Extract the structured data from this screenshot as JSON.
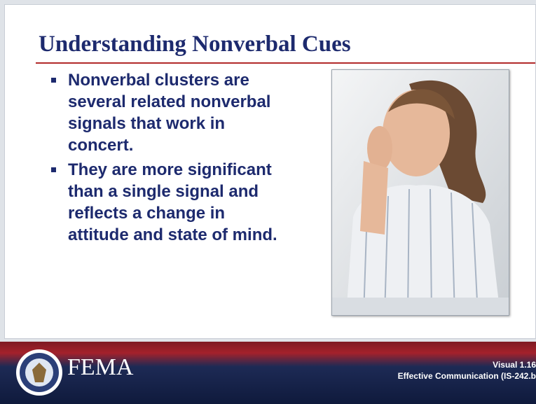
{
  "header": {
    "title": "Understanding Nonverbal Cues"
  },
  "bullets": [
    "Nonverbal clusters are several related nonverbal signals that work in concert.",
    "They are more significant than a single signal and reflects a change in attitude and state of mind."
  ],
  "footer": {
    "brand": "FEMA",
    "visual": "Visual 1.16",
    "course": "Effective Communication (IS-242.b"
  }
}
